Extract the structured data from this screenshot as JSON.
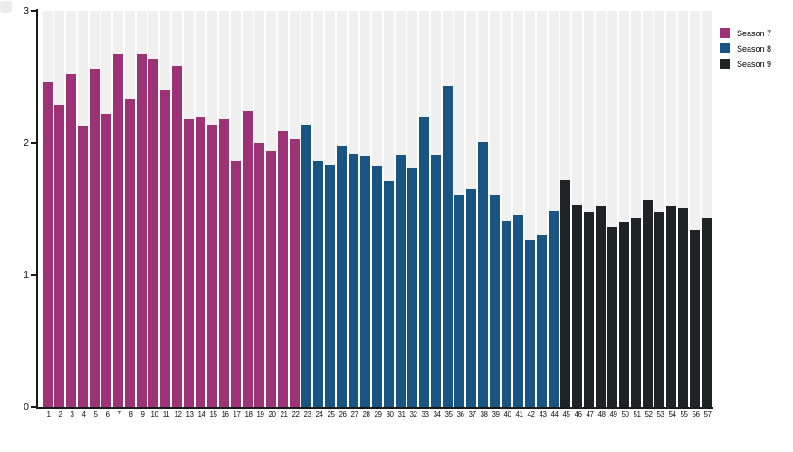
{
  "chart_data": {
    "type": "bar",
    "title": "",
    "xlabel": "",
    "ylabel": "",
    "ylim": [
      0,
      3
    ],
    "yticks": [
      0,
      1,
      2,
      3
    ],
    "grid": false,
    "legend_position": "top-right",
    "plot_band_color": "#f0f0f0",
    "axis_color": "#1a1a1a",
    "categories": [
      1,
      2,
      3,
      4,
      5,
      6,
      7,
      8,
      9,
      10,
      11,
      12,
      13,
      14,
      15,
      16,
      17,
      18,
      19,
      20,
      21,
      22,
      23,
      24,
      25,
      26,
      27,
      28,
      29,
      30,
      31,
      32,
      33,
      34,
      35,
      36,
      37,
      38,
      39,
      40,
      41,
      42,
      43,
      44,
      45,
      46,
      47,
      48,
      49,
      50,
      51,
      52,
      53,
      54,
      55,
      56,
      57
    ],
    "series": [
      {
        "name": "Season 7",
        "color": "#9e3277",
        "values": [
          2.46,
          2.29,
          2.52,
          2.13,
          2.56,
          2.22,
          2.67,
          2.33,
          2.67,
          2.64,
          2.4,
          2.58,
          2.18,
          2.2,
          2.14,
          2.18,
          1.86,
          2.24,
          2.0,
          1.94,
          2.09,
          2.03
        ]
      },
      {
        "name": "Season 8",
        "color": "#185583",
        "values": [
          2.14,
          1.86,
          1.83,
          1.97,
          1.92,
          1.9,
          1.82,
          1.71,
          1.91,
          1.81,
          2.2,
          1.91,
          2.43,
          1.6,
          1.65,
          2.01,
          1.6,
          1.41,
          1.45,
          1.26,
          1.3,
          1.49
        ]
      },
      {
        "name": "Season 9",
        "color": "#1d2423",
        "values": [
          1.72,
          1.53,
          1.47,
          1.52,
          1.36,
          1.4,
          1.43,
          1.57,
          1.47,
          1.52,
          1.51,
          1.34,
          1.43
        ]
      }
    ]
  }
}
